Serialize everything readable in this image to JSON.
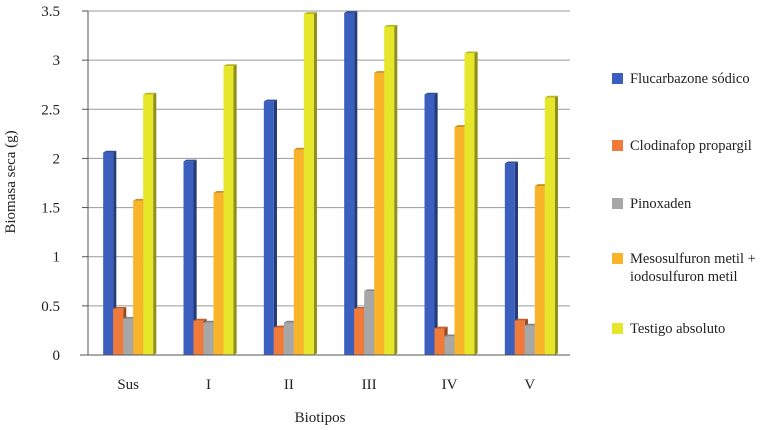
{
  "chart_data": {
    "type": "bar",
    "title": "",
    "xlabel": "Biotipos",
    "ylabel": "Biomasa seca (g)",
    "ylim": [
      0,
      3.5
    ],
    "yticks": [
      "0",
      "0.5",
      "1",
      "1.5",
      "2",
      "2.5",
      "3",
      "3.5"
    ],
    "grid": true,
    "legend_position": "right",
    "categories": [
      "Sus",
      "I",
      "II",
      "III",
      "IV",
      "V"
    ],
    "series": [
      {
        "name": "Flucarbazone sódico",
        "color": "#3a5fbf",
        "values": [
          2.06,
          1.97,
          2.58,
          3.48,
          2.65,
          1.95
        ]
      },
      {
        "name": "Clodinafop propargil",
        "color": "#f07a3a",
        "values": [
          0.47,
          0.35,
          0.28,
          0.47,
          0.27,
          0.35
        ]
      },
      {
        "name": "Pinoxaden",
        "color": "#a7a7a7",
        "values": [
          0.37,
          0.33,
          0.33,
          0.65,
          0.19,
          0.3
        ]
      },
      {
        "name": "Mesosulfuron metil +\niodosulfuron metil",
        "color": "#f9b42a",
        "values": [
          1.57,
          1.65,
          2.09,
          2.87,
          2.32,
          1.72
        ]
      },
      {
        "name": "Testigo absoluto",
        "color": "#e6e62a",
        "values": [
          2.65,
          2.94,
          3.47,
          3.34,
          3.07,
          2.62
        ]
      }
    ]
  }
}
